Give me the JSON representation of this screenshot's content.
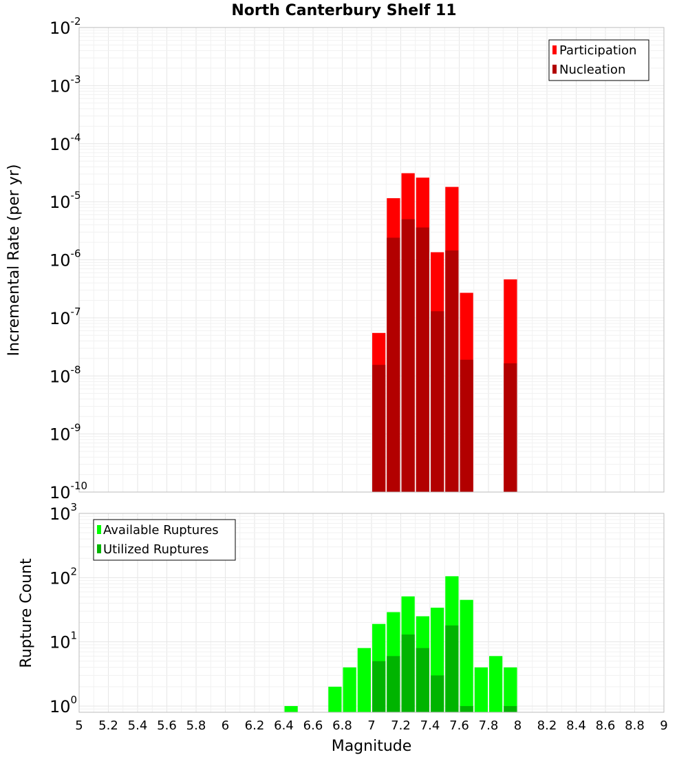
{
  "chart_data": [
    {
      "type": "bar",
      "title": "North Canterbury Shelf 11",
      "xlabel": "",
      "ylabel": "Incremental Rate (per yr)",
      "yscale": "log",
      "ylim": [
        1e-10,
        0.01
      ],
      "xlim": [
        5,
        9
      ],
      "grid": true,
      "legend_position": "top-right",
      "x": [
        7.05,
        7.15,
        7.25,
        7.35,
        7.45,
        7.55,
        7.65,
        7.95
      ],
      "series": [
        {
          "name": "Participation",
          "color": "#ff0000",
          "values": [
            5.5e-08,
            1.15e-05,
            3.1e-05,
            2.6e-05,
            1.35e-06,
            1.8e-05,
            2.7e-07,
            4.6e-07
          ]
        },
        {
          "name": "Nucleation",
          "color": "#b20000",
          "values": [
            1.55e-08,
            2.4e-06,
            5e-06,
            3.6e-06,
            1.3e-07,
            1.45e-06,
            1.9e-08,
            1.65e-08
          ]
        }
      ],
      "yticks": [
        {
          "base": "10",
          "exp": "-10"
        },
        {
          "base": "10",
          "exp": "-9"
        },
        {
          "base": "10",
          "exp": "-8"
        },
        {
          "base": "10",
          "exp": "-7"
        },
        {
          "base": "10",
          "exp": "-6"
        },
        {
          "base": "10",
          "exp": "-5"
        },
        {
          "base": "10",
          "exp": "-4"
        },
        {
          "base": "10",
          "exp": "-3"
        },
        {
          "base": "10",
          "exp": "-2"
        }
      ]
    },
    {
      "type": "bar",
      "title": "",
      "xlabel": "Magnitude",
      "ylabel": "Rupture Count",
      "yscale": "log",
      "ylim": [
        0.8,
        1000
      ],
      "xlim": [
        5,
        9
      ],
      "grid": true,
      "legend_position": "top-left",
      "x": [
        6.45,
        6.75,
        6.85,
        6.95,
        7.05,
        7.15,
        7.25,
        7.35,
        7.45,
        7.55,
        7.65,
        7.75,
        7.85,
        7.95
      ],
      "series": [
        {
          "name": "Available Ruptures",
          "color": "#00ff00",
          "values": [
            1,
            2,
            4,
            8,
            19,
            29,
            51,
            25,
            34,
            105,
            45,
            4,
            6,
            4
          ]
        },
        {
          "name": "Utilized Ruptures",
          "color": "#00b400",
          "values": [
            null,
            null,
            null,
            null,
            5,
            6,
            13,
            8,
            3,
            18,
            1,
            null,
            null,
            1
          ]
        }
      ],
      "yticks": [
        {
          "base": "10",
          "exp": "0"
        },
        {
          "base": "10",
          "exp": "1"
        },
        {
          "base": "10",
          "exp": "2"
        },
        {
          "base": "10",
          "exp": "3"
        }
      ],
      "xticks": [
        "5",
        "5.2",
        "5.4",
        "5.6",
        "5.8",
        "6",
        "6.2",
        "6.4",
        "6.6",
        "6.8",
        "7",
        "7.2",
        "7.4",
        "7.6",
        "7.8",
        "8",
        "8.2",
        "8.4",
        "8.6",
        "8.8",
        "9"
      ]
    }
  ]
}
